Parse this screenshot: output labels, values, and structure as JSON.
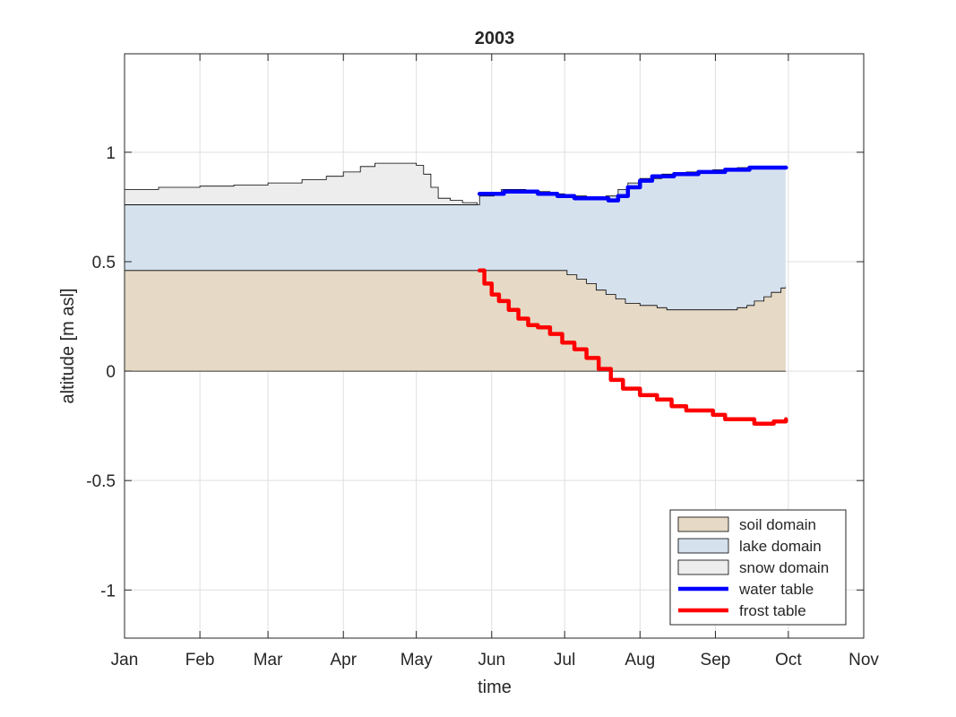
{
  "chart_data": {
    "type": "area",
    "title": "2003",
    "xlabel": "time",
    "ylabel": "altitude [m asl]",
    "x_ticks": [
      {
        "date": "2003-01-01",
        "label": "Jan"
      },
      {
        "date": "2003-02-01",
        "label": "Feb"
      },
      {
        "date": "2003-03-01",
        "label": "Mar"
      },
      {
        "date": "2003-04-01",
        "label": "Apr"
      },
      {
        "date": "2003-05-01",
        "label": "May"
      },
      {
        "date": "2003-06-01",
        "label": "Jun"
      },
      {
        "date": "2003-07-01",
        "label": "Jul"
      },
      {
        "date": "2003-08-01",
        "label": "Aug"
      },
      {
        "date": "2003-09-01",
        "label": "Sep"
      },
      {
        "date": "2003-10-01",
        "label": "Oct"
      },
      {
        "date": "2003-11-01",
        "label": "Nov"
      }
    ],
    "xlim": [
      "2003-01-01",
      "2003-11-01"
    ],
    "ylim": [
      -1.22,
      1.45
    ],
    "y_ticks": [
      {
        "value": 1,
        "label": "1"
      },
      {
        "value": 0.5,
        "label": "0.5"
      },
      {
        "value": 0,
        "label": "0"
      },
      {
        "value": -0.5,
        "label": "-0.5"
      },
      {
        "value": -1,
        "label": "-1"
      }
    ],
    "grid": true,
    "legend_position": "bottom-right",
    "series": [
      {
        "name": "soil domain",
        "kind": "area",
        "color": "#e6d9c5",
        "points": [
          [
            "2003-01-01",
            0.46
          ],
          [
            "2003-05-27",
            0.46
          ],
          [
            "2003-06-30",
            0.46
          ],
          [
            "2003-07-02",
            0.44
          ],
          [
            "2003-07-06",
            0.42
          ],
          [
            "2003-07-10",
            0.4
          ],
          [
            "2003-07-14",
            0.37
          ],
          [
            "2003-07-18",
            0.35
          ],
          [
            "2003-07-22",
            0.33
          ],
          [
            "2003-07-26",
            0.31
          ],
          [
            "2003-08-01",
            0.3
          ],
          [
            "2003-08-08",
            0.29
          ],
          [
            "2003-08-12",
            0.28
          ],
          [
            "2003-09-07",
            0.28
          ],
          [
            "2003-09-10",
            0.29
          ],
          [
            "2003-09-14",
            0.3
          ],
          [
            "2003-09-17",
            0.32
          ],
          [
            "2003-09-21",
            0.34
          ],
          [
            "2003-09-24",
            0.36
          ],
          [
            "2003-09-28",
            0.38
          ],
          [
            "2003-09-30",
            0.39
          ]
        ]
      },
      {
        "name": "lake domain",
        "kind": "area",
        "color": "#d6e1ee",
        "points": [
          [
            "2003-01-01",
            0.76
          ],
          [
            "2003-05-26",
            0.76
          ],
          [
            "2003-05-27",
            0.8
          ],
          [
            "2003-06-02",
            0.81
          ],
          [
            "2003-06-05",
            0.83
          ],
          [
            "2003-06-15",
            0.82
          ],
          [
            "2003-06-25",
            0.81
          ],
          [
            "2003-07-01",
            0.8
          ],
          [
            "2003-07-10",
            0.79
          ],
          [
            "2003-07-18",
            0.8
          ],
          [
            "2003-07-23",
            0.83
          ],
          [
            "2003-07-27",
            0.86
          ],
          [
            "2003-08-01",
            0.88
          ],
          [
            "2003-08-10",
            0.9
          ],
          [
            "2003-08-20",
            0.91
          ],
          [
            "2003-08-31",
            0.92
          ],
          [
            "2003-09-10",
            0.93
          ],
          [
            "2003-09-30",
            0.94
          ]
        ]
      },
      {
        "name": "snow domain",
        "kind": "area",
        "color": "#ededed",
        "points": [
          [
            "2003-01-01",
            0.83
          ],
          [
            "2003-01-15",
            0.84
          ],
          [
            "2003-02-01",
            0.845
          ],
          [
            "2003-02-15",
            0.85
          ],
          [
            "2003-03-01",
            0.86
          ],
          [
            "2003-03-15",
            0.875
          ],
          [
            "2003-03-25",
            0.89
          ],
          [
            "2003-04-01",
            0.91
          ],
          [
            "2003-04-08",
            0.935
          ],
          [
            "2003-04-14",
            0.95
          ],
          [
            "2003-04-28",
            0.95
          ],
          [
            "2003-05-01",
            0.94
          ],
          [
            "2003-05-04",
            0.9
          ],
          [
            "2003-05-07",
            0.84
          ],
          [
            "2003-05-10",
            0.79
          ],
          [
            "2003-05-15",
            0.78
          ],
          [
            "2003-05-20",
            0.77
          ],
          [
            "2003-05-26",
            0.76
          ]
        ]
      },
      {
        "name": "water table",
        "kind": "line",
        "color": "#0000ff",
        "points": [
          [
            "2003-05-27",
            0.81
          ],
          [
            "2003-06-02",
            0.81
          ],
          [
            "2003-06-06",
            0.82
          ],
          [
            "2003-06-12",
            0.82
          ],
          [
            "2003-06-20",
            0.81
          ],
          [
            "2003-06-28",
            0.8
          ],
          [
            "2003-07-05",
            0.79
          ],
          [
            "2003-07-12",
            0.79
          ],
          [
            "2003-07-19",
            0.78
          ],
          [
            "2003-07-23",
            0.8
          ],
          [
            "2003-07-27",
            0.84
          ],
          [
            "2003-08-01",
            0.87
          ],
          [
            "2003-08-06",
            0.89
          ],
          [
            "2003-08-15",
            0.9
          ],
          [
            "2003-08-25",
            0.91
          ],
          [
            "2003-09-05",
            0.92
          ],
          [
            "2003-09-15",
            0.93
          ],
          [
            "2003-09-30",
            0.93
          ]
        ]
      },
      {
        "name": "frost table",
        "kind": "line",
        "color": "#ff0000",
        "points": [
          [
            "2003-05-27",
            0.46
          ],
          [
            "2003-05-29",
            0.4
          ],
          [
            "2003-06-01",
            0.35
          ],
          [
            "2003-06-04",
            0.32
          ],
          [
            "2003-06-08",
            0.28
          ],
          [
            "2003-06-12",
            0.24
          ],
          [
            "2003-06-16",
            0.21
          ],
          [
            "2003-06-20",
            0.2
          ],
          [
            "2003-06-25",
            0.17
          ],
          [
            "2003-06-30",
            0.13
          ],
          [
            "2003-07-05",
            0.1
          ],
          [
            "2003-07-10",
            0.06
          ],
          [
            "2003-07-15",
            0.01
          ],
          [
            "2003-07-20",
            -0.04
          ],
          [
            "2003-07-25",
            -0.08
          ],
          [
            "2003-08-01",
            -0.11
          ],
          [
            "2003-08-08",
            -0.13
          ],
          [
            "2003-08-14",
            -0.16
          ],
          [
            "2003-08-20",
            -0.18
          ],
          [
            "2003-08-31",
            -0.2
          ],
          [
            "2003-09-05",
            -0.22
          ],
          [
            "2003-09-13",
            -0.22
          ],
          [
            "2003-09-17",
            -0.24
          ],
          [
            "2003-09-25",
            -0.23
          ],
          [
            "2003-09-30",
            -0.22
          ]
        ]
      }
    ]
  }
}
